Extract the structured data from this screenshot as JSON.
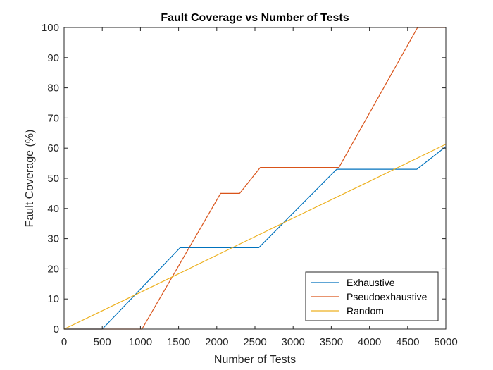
{
  "chart_data": {
    "type": "line",
    "title": "Fault Coverage vs Number of Tests",
    "xlabel": "Number of Tests",
    "ylabel": "Fault Coverage (%)",
    "xlim": [
      0,
      5000
    ],
    "ylim": [
      0,
      100
    ],
    "xticks": [
      0,
      500,
      1000,
      1500,
      2000,
      2500,
      3000,
      3500,
      4000,
      4500,
      5000
    ],
    "yticks": [
      0,
      10,
      20,
      30,
      40,
      50,
      60,
      70,
      80,
      90,
      100
    ],
    "grid": false,
    "box": true,
    "legend_location": "bottom-right",
    "series": [
      {
        "name": "Exhaustive",
        "color": "#0072BD",
        "x": [
          0,
          500,
          1520,
          2550,
          3570,
          4620,
          5000
        ],
        "y": [
          0,
          0,
          27,
          27,
          53,
          53,
          60.5
        ]
      },
      {
        "name": "Pseudoexhaustive",
        "color": "#D95319",
        "x": [
          0,
          1020,
          2050,
          2300,
          2570,
          3600,
          4630,
          5000
        ],
        "y": [
          0,
          0,
          45,
          45,
          53.6,
          53.6,
          100,
          100
        ]
      },
      {
        "name": "Random",
        "color": "#EDB120",
        "x": [
          0,
          1000,
          2000,
          3000,
          4000,
          5000
        ],
        "y": [
          0,
          12.2,
          24.5,
          36.8,
          49,
          61.3
        ]
      }
    ]
  }
}
